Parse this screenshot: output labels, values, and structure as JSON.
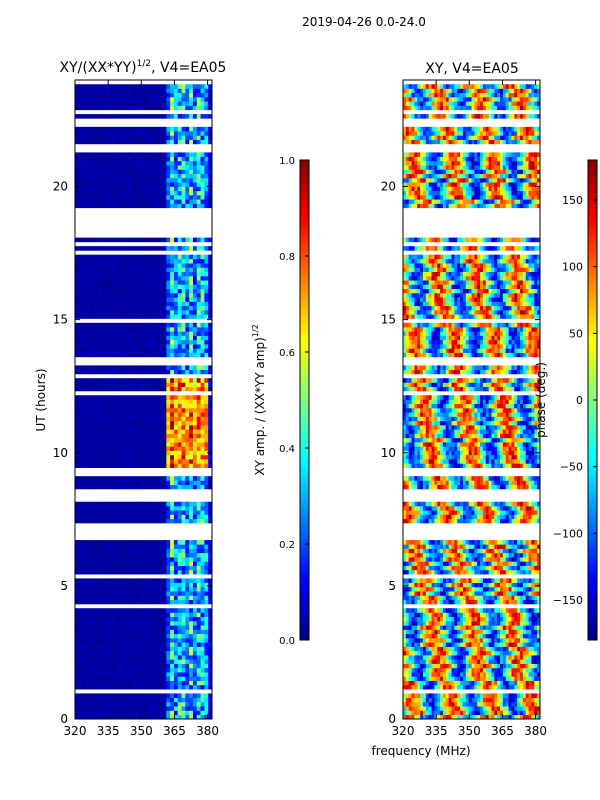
{
  "figure": {
    "suptitle": "2019-04-26 0.0-24.0",
    "shared_xlabel": "frequency (MHz)"
  },
  "colors": {
    "jet": [
      "#00007f",
      "#0000ff",
      "#007fff",
      "#00ffff",
      "#7fff7f",
      "#ffff00",
      "#ff7f00",
      "#ff0000",
      "#7f0000"
    ]
  },
  "chart_data": [
    {
      "type": "heatmap",
      "title": "XY/(XX*YY)",
      "title_exponent": "1/2",
      "title_suffix": ", V4=EA05",
      "xlabel": "",
      "ylabel": "UT (hours)",
      "xlim": [
        320,
        382
      ],
      "ylim": [
        0,
        24
      ],
      "xticks": [
        320,
        335,
        350,
        365,
        380
      ],
      "yticks": [
        0,
        5,
        10,
        15,
        20
      ],
      "colorbar": {
        "label": "XY amp. / (XX*YY amp)",
        "label_exponent": "1/2",
        "range": [
          0.0,
          1.0
        ],
        "ticks": [
          "0.0",
          "0.2",
          "0.4",
          "0.6",
          "0.8",
          "1.0"
        ]
      },
      "flagged_ut_ranges": [
        [
          0.9,
          1.2
        ],
        [
          6.7,
          7.4
        ],
        [
          8.2,
          8.6
        ],
        [
          9.2,
          9.5
        ],
        [
          13.3,
          13.6
        ],
        [
          17.4,
          17.6
        ],
        [
          18.3,
          19.2
        ],
        [
          21.3,
          21.6
        ],
        [
          22.3,
          22.6
        ]
      ],
      "high_amplitude_ut_range": [
        9.5,
        13.0
      ]
    },
    {
      "type": "heatmap",
      "title": "XY, V4=EA05",
      "xlabel": "frequency (MHz)",
      "ylabel": "",
      "xlim": [
        320,
        382
      ],
      "ylim": [
        0,
        24
      ],
      "xticks": [
        320,
        335,
        350,
        365,
        380
      ],
      "yticks": [
        0,
        5,
        10,
        15,
        20
      ],
      "colorbar": {
        "label": "phase (deg.)",
        "range": [
          -180,
          180
        ],
        "ticks": [
          "−150",
          "−100",
          "−50",
          "0",
          "50",
          "100",
          "150"
        ]
      },
      "flagged_ut_ranges": [
        [
          0.9,
          1.2
        ],
        [
          6.7,
          7.4
        ],
        [
          8.2,
          8.6
        ],
        [
          9.2,
          9.5
        ],
        [
          13.3,
          13.6
        ],
        [
          17.4,
          17.6
        ],
        [
          18.3,
          19.2
        ],
        [
          21.3,
          21.6
        ],
        [
          22.3,
          22.6
        ]
      ]
    }
  ]
}
